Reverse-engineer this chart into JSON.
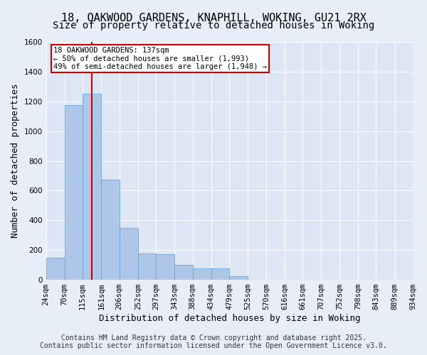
{
  "title": "18, OAKWOOD GARDENS, KNAPHILL, WOKING, GU21 2RX",
  "subtitle": "Size of property relative to detached houses in Woking",
  "xlabel": "Distribution of detached houses by size in Woking",
  "ylabel": "Number of detached properties",
  "bin_labels": [
    "24sqm",
    "70sqm",
    "115sqm",
    "161sqm",
    "206sqm",
    "252sqm",
    "297sqm",
    "343sqm",
    "388sqm",
    "434sqm",
    "479sqm",
    "525sqm",
    "570sqm",
    "616sqm",
    "661sqm",
    "707sqm",
    "752sqm",
    "798sqm",
    "843sqm",
    "889sqm",
    "934sqm"
  ],
  "bin_edges": [
    24,
    70,
    115,
    161,
    206,
    252,
    297,
    343,
    388,
    434,
    479,
    525,
    570,
    616,
    661,
    707,
    752,
    798,
    843,
    889,
    934
  ],
  "bar_heights": [
    150,
    1175,
    1250,
    675,
    350,
    175,
    170,
    100,
    75,
    75,
    25,
    0,
    0,
    0,
    0,
    0,
    0,
    0,
    0,
    0
  ],
  "bar_color": "#aec6e8",
  "bar_edge_color": "#5a9fd4",
  "vline_x": 137,
  "vline_color": "#cc0000",
  "ylim": [
    0,
    1600
  ],
  "yticks": [
    0,
    200,
    400,
    600,
    800,
    1000,
    1200,
    1400,
    1600
  ],
  "annotation_title": "18 OAKWOOD GARDENS: 137sqm",
  "annotation_line1": "← 50% of detached houses are smaller (1,993)",
  "annotation_line2": "49% of semi-detached houses are larger (1,948) →",
  "annotation_box_color": "#cc0000",
  "footer_line1": "Contains HM Land Registry data © Crown copyright and database right 2025.",
  "footer_line2": "Contains public sector information licensed under the Open Government Licence v3.0.",
  "bg_color": "#e8eef7",
  "plot_bg_color": "#dce6f5",
  "grid_color": "#ffffff",
  "title_fontsize": 11,
  "subtitle_fontsize": 10,
  "label_fontsize": 9,
  "tick_fontsize": 7.5,
  "footer_fontsize": 7
}
